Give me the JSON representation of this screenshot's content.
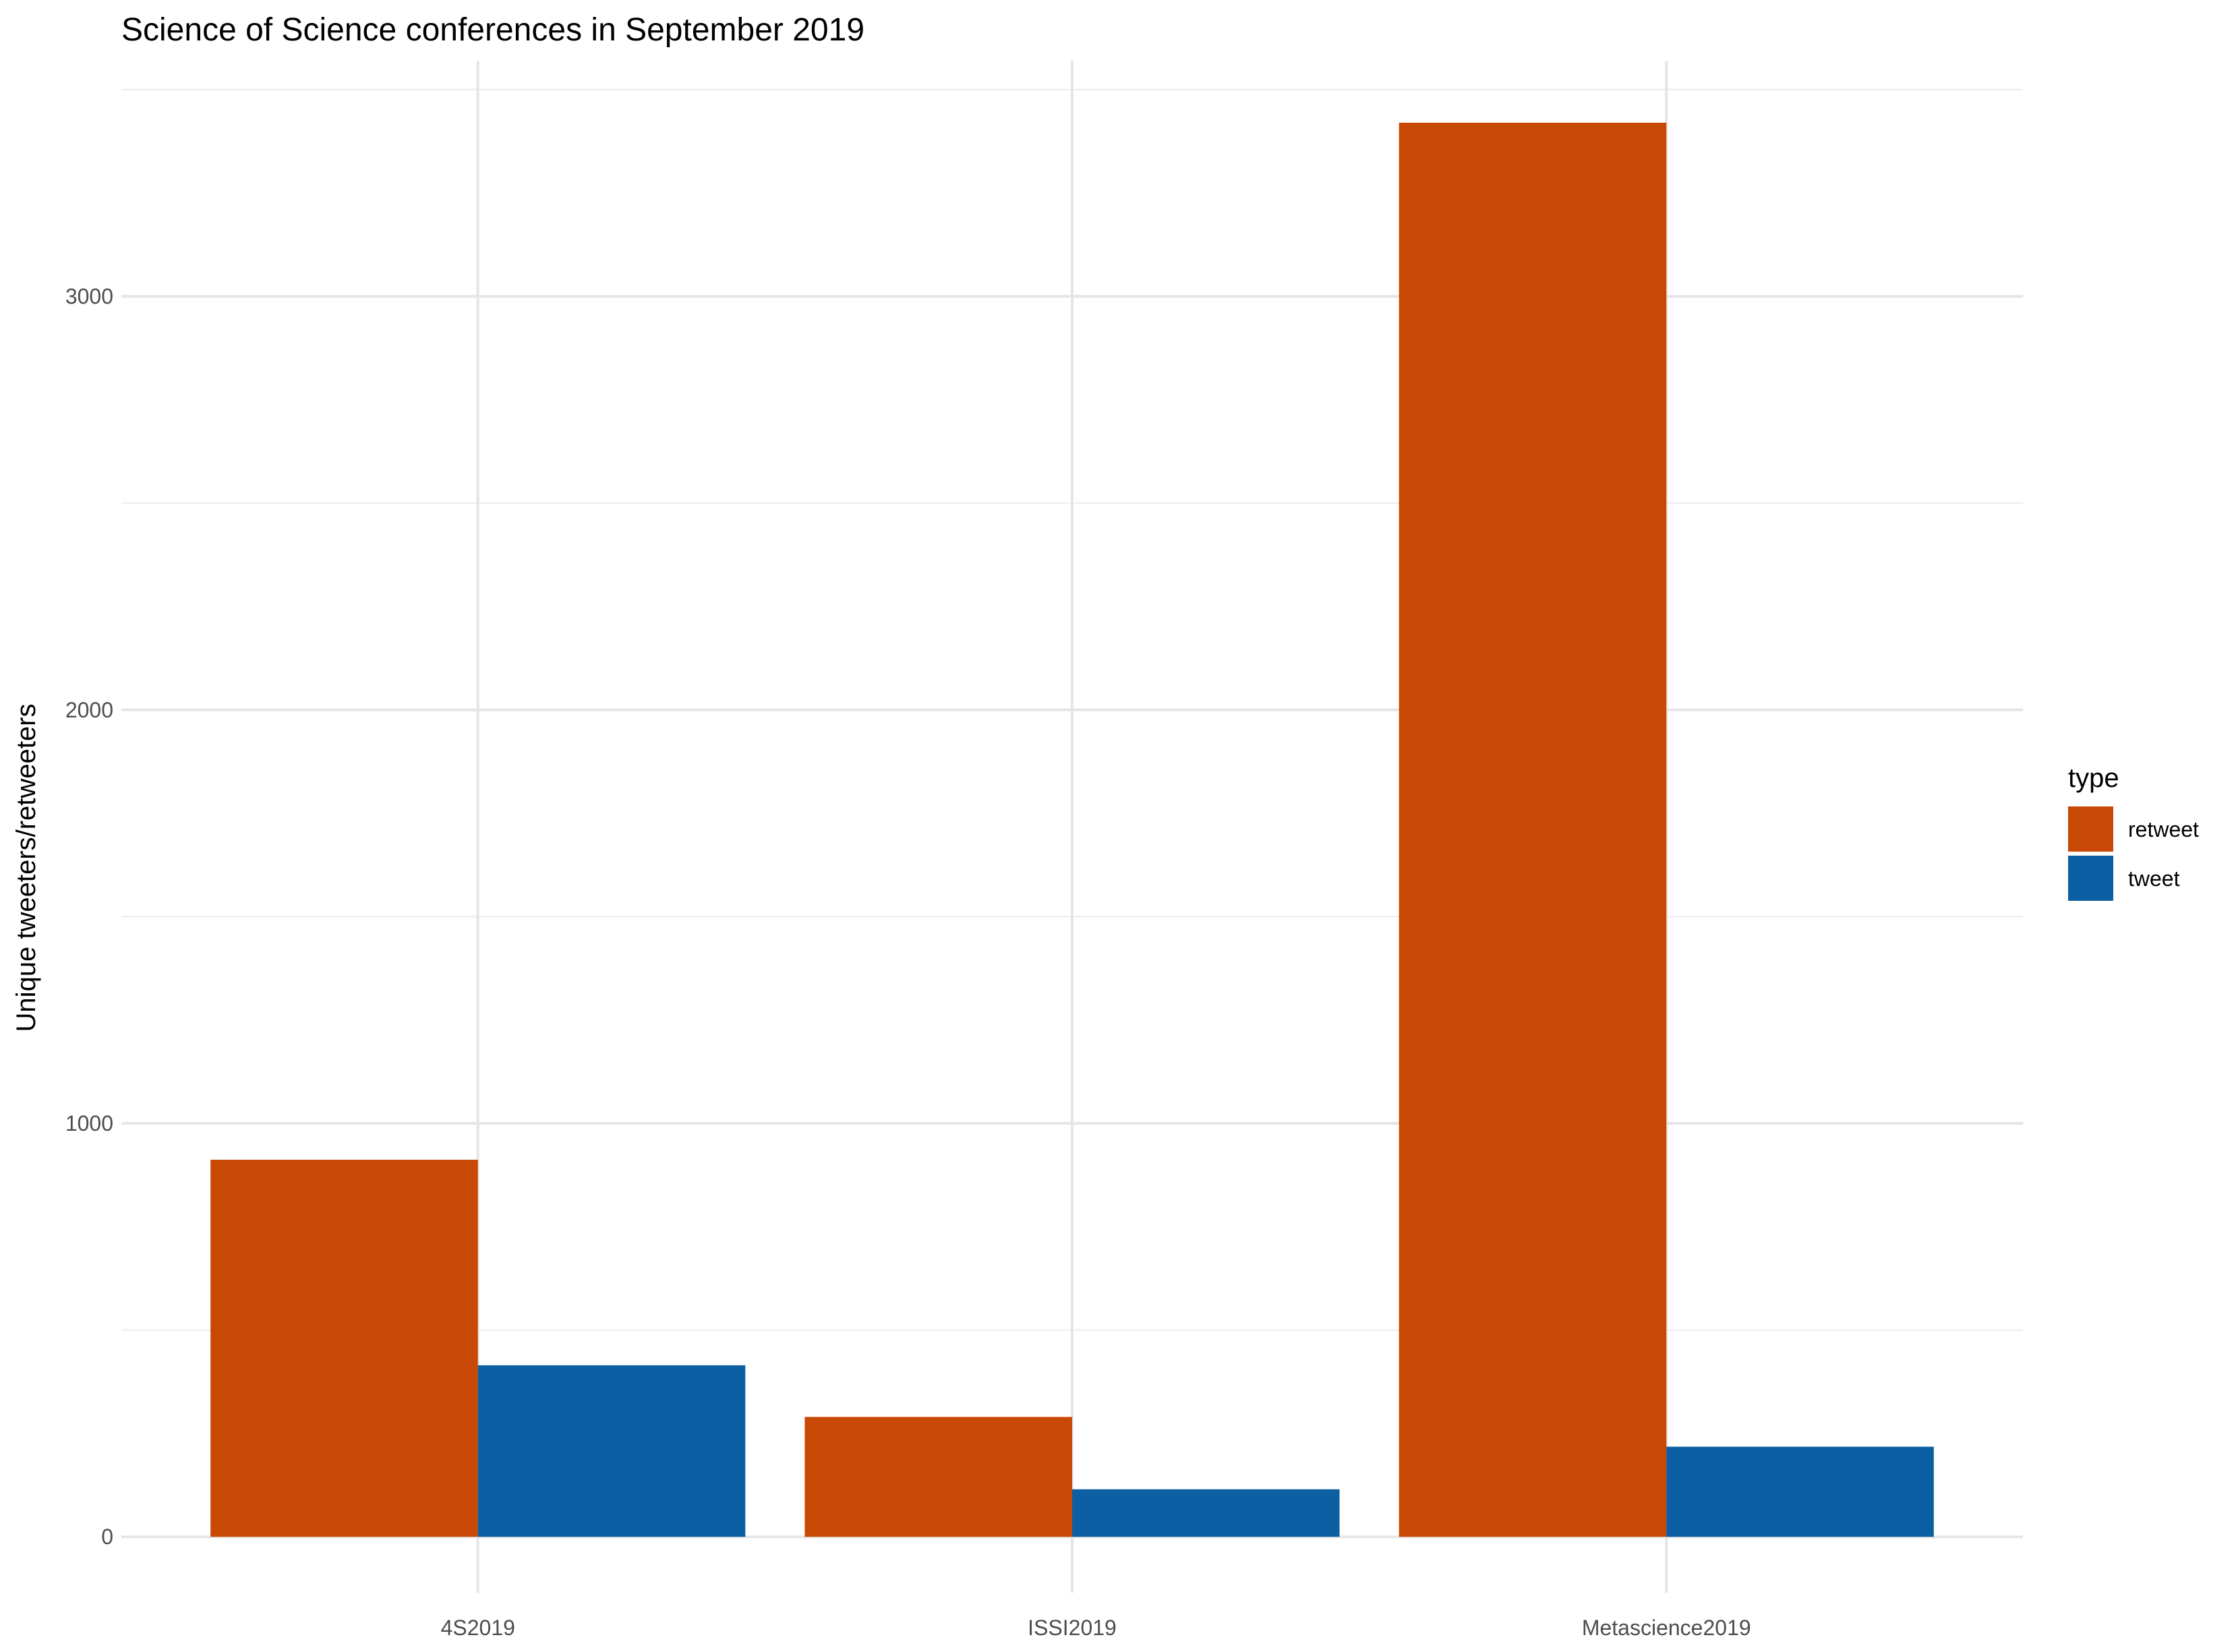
{
  "chart_data": {
    "type": "bar",
    "title": "Science of Science conferences in September 2019",
    "xlabel": "",
    "ylabel": "Unique tweeters/retweeters",
    "categories": [
      "4S2019",
      "ISSI2019",
      "Metascience2019"
    ],
    "series": [
      {
        "name": "retweet",
        "color": "#c84905",
        "values": [
          912,
          290,
          3420
        ]
      },
      {
        "name": "tweet",
        "color": "#0b5fa2",
        "values": [
          415,
          115,
          218
        ]
      }
    ],
    "ylim": [
      -135,
      3570
    ],
    "yticks": [
      0,
      1000,
      2000,
      3000
    ],
    "ytick_labels": [
      "0",
      "1000",
      "2000",
      "3000"
    ],
    "legend": {
      "title": "type",
      "position": "right"
    },
    "grid": true,
    "bar_mode": "dodge"
  }
}
